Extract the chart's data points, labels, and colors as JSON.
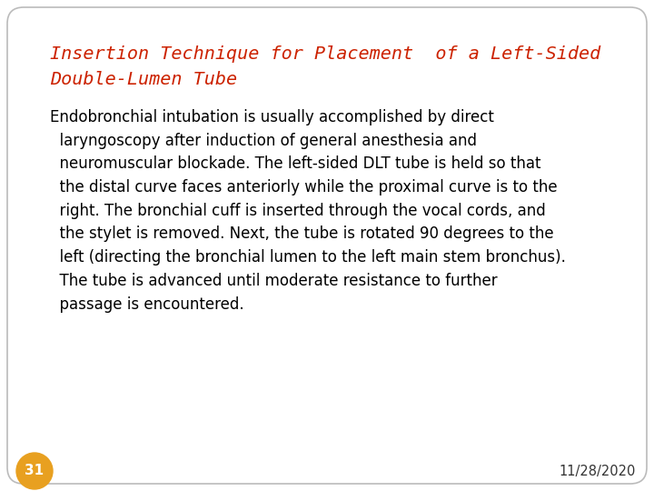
{
  "title_line1": "Insertion Technique for Placement  of a Left-Sided",
  "title_line2": "Double-Lumen Tube",
  "title_color": "#cc2200",
  "title_fontstyle": "italic",
  "title_fontsize": 14.5,
  "body_text": "Endobronchial intubation is usually accomplished by direct\n  laryngoscopy after induction of general anesthesia and\n  neuromuscular blockade. The left-sided DLT tube is held so that\n  the distal curve faces anteriorly while the proximal curve is to the\n  right. The bronchial cuff is inserted through the vocal cords, and\n  the stylet is removed. Next, the tube is rotated 90 degrees to the\n  left (directing the bronchial lumen to the left main stem bronchus).\n  The tube is advanced until moderate resistance to further\n  passage is encountered.",
  "body_fontsize": 12.0,
  "body_color": "#000000",
  "page_number": "31",
  "page_number_bg": "#e8a020",
  "page_number_fontsize": 11,
  "date_text": "11/28/2020",
  "date_fontsize": 10.5,
  "background_color": "#ffffff",
  "border_color": "#bbbbbb"
}
